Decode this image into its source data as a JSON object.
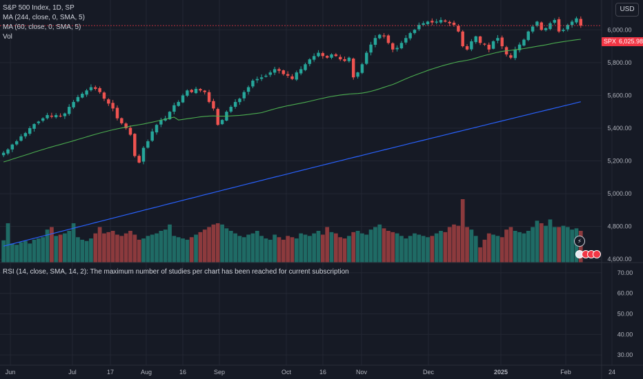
{
  "legend": {
    "symbol_line": "S&P 500 Index, 1D, SP",
    "ma1": "MA (244, close, 0, SMA, 5)",
    "ma2": "MA (60, close, 0, SMA, 5)",
    "vol": "Vol",
    "rsi": "RSI (14, close, SMA, 14, 2): The maximum number of studies per chart has been reached for current subscription"
  },
  "currency": "USD",
  "last_price": {
    "ticker": "SPX",
    "value": "6,025.98"
  },
  "flash_icon": "lightning-icon",
  "colors": {
    "background": "#161a25",
    "up": "#26a69a",
    "down": "#ef5350",
    "vol_up": "#1f6b65",
    "vol_down": "#8c3a3d",
    "ma244": "#2962ff",
    "ma60": "#4caf50",
    "grid": "#232733",
    "axis_text": "#b2b5be"
  },
  "chart_data": {
    "type": "candlestick",
    "price_axis": {
      "ticks": [
        "4,600.00",
        "4,800.00",
        "5,000.00",
        "5,200.00",
        "5,400.00",
        "5,600.00",
        "5,800.00",
        "6,000.00"
      ],
      "range": [
        4580,
        6150
      ]
    },
    "rsi_axis": {
      "ticks": [
        "30.00",
        "40.00",
        "50.00",
        "60.00",
        "70.00"
      ],
      "range": [
        25,
        75
      ]
    },
    "x_axis_labels": [
      "Jun",
      "Jul",
      "17",
      "Aug",
      "16",
      "Sep",
      "Oct",
      "16",
      "Nov",
      "Dec",
      "2025",
      "Feb",
      "24"
    ],
    "ohlc_close_path": [
      5250,
      5270,
      5300,
      5320,
      5350,
      5370,
      5400,
      5425,
      5440,
      5460,
      5480,
      5470,
      5480,
      5475,
      5490,
      5530,
      5560,
      5590,
      5610,
      5630,
      5650,
      5640,
      5620,
      5580,
      5550,
      5520,
      5460,
      5430,
      5400,
      5360,
      5230,
      5190,
      5280,
      5320,
      5380,
      5420,
      5450,
      5460,
      5500,
      5540,
      5560,
      5600,
      5630,
      5620,
      5640,
      5630,
      5620,
      5560,
      5520,
      5420,
      5450,
      5500,
      5530,
      5560,
      5580,
      5620,
      5650,
      5690,
      5700,
      5710,
      5720,
      5740,
      5760,
      5750,
      5730,
      5720,
      5700,
      5740,
      5760,
      5790,
      5820,
      5840,
      5860,
      5840,
      5830,
      5850,
      5840,
      5820,
      5810,
      5830,
      5710,
      5740,
      5790,
      5860,
      5910,
      5950,
      5970,
      5960,
      5920,
      5880,
      5890,
      5920,
      5950,
      5980,
      6000,
      6030,
      6040,
      6050,
      6045,
      6050,
      6060,
      6050,
      6040,
      6030,
      5990,
      5900,
      5880,
      5930,
      5960,
      5920,
      5910,
      5880,
      5930,
      5950,
      5900,
      5850,
      5830,
      5880,
      5910,
      5940,
      5990,
      6020,
      6050,
      6000,
      6010,
      6040,
      6060,
      5990,
      6000,
      6030,
      6050,
      6070,
      6025.98
    ],
    "volume_path": [
      0.35,
      0.62,
      0.3,
      0.28,
      0.32,
      0.34,
      0.3,
      0.36,
      0.38,
      0.4,
      0.52,
      0.56,
      0.42,
      0.44,
      0.46,
      0.5,
      0.62,
      0.4,
      0.36,
      0.34,
      0.38,
      0.46,
      0.56,
      0.46,
      0.48,
      0.5,
      0.44,
      0.42,
      0.46,
      0.5,
      0.44,
      0.36,
      0.38,
      0.42,
      0.44,
      0.46,
      0.5,
      0.52,
      0.6,
      0.42,
      0.4,
      0.38,
      0.36,
      0.4,
      0.44,
      0.48,
      0.52,
      0.56,
      0.6,
      0.62,
      0.6,
      0.54,
      0.5,
      0.46,
      0.42,
      0.4,
      0.44,
      0.46,
      0.5,
      0.42,
      0.38,
      0.36,
      0.44,
      0.4,
      0.36,
      0.42,
      0.4,
      0.38,
      0.46,
      0.44,
      0.42,
      0.46,
      0.5,
      0.44,
      0.56,
      0.48,
      0.46,
      0.4,
      0.38,
      0.42,
      0.48,
      0.5,
      0.46,
      0.44,
      0.52,
      0.56,
      0.6,
      0.54,
      0.5,
      0.48,
      0.46,
      0.42,
      0.38,
      0.42,
      0.46,
      0.44,
      0.42,
      0.4,
      0.42,
      0.46,
      0.5,
      0.48,
      0.56,
      0.6,
      0.58,
      1.0,
      0.56,
      0.52,
      0.42,
      0.24,
      0.36,
      0.46,
      0.44,
      0.42,
      0.4,
      0.52,
      0.56,
      0.5,
      0.48,
      0.46,
      0.5,
      0.56,
      0.66,
      0.62,
      0.58,
      0.68,
      0.56,
      0.56,
      0.58,
      0.56,
      0.52,
      0.54,
      0.5
    ]
  }
}
